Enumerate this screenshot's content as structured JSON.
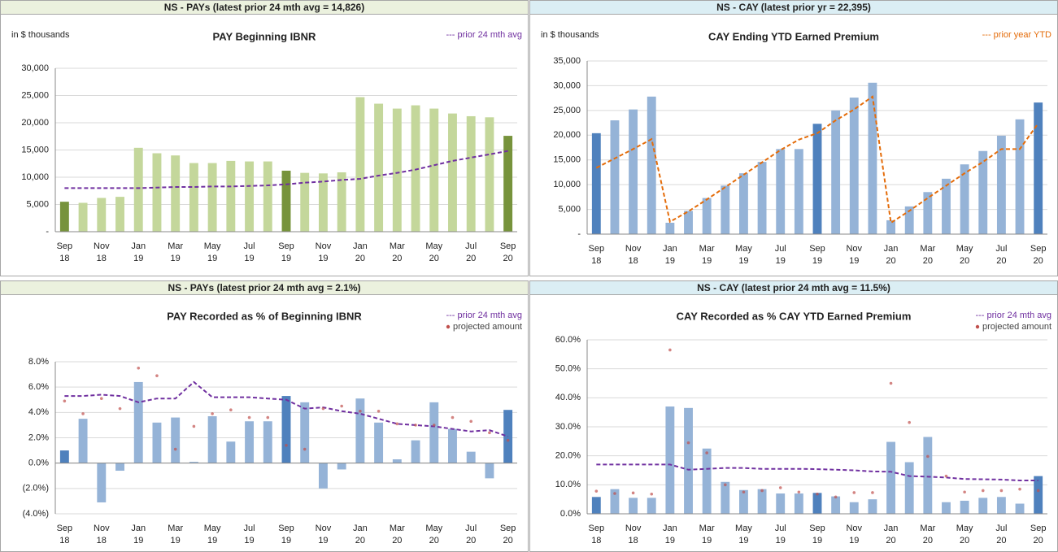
{
  "chart_data": [
    {
      "type": "bar",
      "header": "NS - PAYs (latest prior 24 mth avg = 14,826)",
      "header_color": "#ebf1de",
      "title": "PAY Beginning IBNR",
      "unit_label": "in $ thousands",
      "categories": [
        [
          "Sep",
          "18"
        ],
        null,
        [
          "Nov",
          "18"
        ],
        null,
        [
          "Jan",
          "19"
        ],
        null,
        [
          "Mar",
          "19"
        ],
        null,
        [
          "May",
          "19"
        ],
        null,
        [
          "Jul",
          "19"
        ],
        null,
        [
          "Sep",
          "19"
        ],
        null,
        [
          "Nov",
          "19"
        ],
        null,
        [
          "Jan",
          "20"
        ],
        null,
        [
          "Mar",
          "20"
        ],
        null,
        [
          "May",
          "20"
        ],
        null,
        [
          "Jul",
          "20"
        ],
        null,
        [
          "Sep",
          "20"
        ]
      ],
      "ylim": [
        0,
        30000
      ],
      "yticks": [
        {
          "value": 0,
          "label": "-"
        },
        {
          "value": 5000,
          "label": "5,000"
        },
        {
          "value": 10000,
          "label": "10,000"
        },
        {
          "value": 15000,
          "label": "15,000"
        },
        {
          "value": 20000,
          "label": "20,000"
        },
        {
          "value": 25000,
          "label": "25,000"
        },
        {
          "value": 30000,
          "label": "30,000"
        }
      ],
      "series": [
        {
          "type": "bar",
          "values": [
            5500,
            5300,
            6200,
            6400,
            15400,
            14400,
            14000,
            12600,
            12600,
            13000,
            12900,
            12900,
            11200,
            10800,
            10700,
            10900,
            24700,
            23500,
            22600,
            23200,
            22600,
            21700,
            21200,
            21000,
            17600
          ],
          "colors": [
            "#77933c",
            "#c4d79b",
            "#c4d79b",
            "#c4d79b",
            "#c4d79b",
            "#c4d79b",
            "#c4d79b",
            "#c4d79b",
            "#c4d79b",
            "#c4d79b",
            "#c4d79b",
            "#c4d79b",
            "#77933c",
            "#c4d79b",
            "#c4d79b",
            "#c4d79b",
            "#c4d79b",
            "#c4d79b",
            "#c4d79b",
            "#c4d79b",
            "#c4d79b",
            "#c4d79b",
            "#c4d79b",
            "#c4d79b",
            "#77933c"
          ]
        },
        {
          "type": "line",
          "name": "--- prior 24 mth avg",
          "color": "#7030a0",
          "values": [
            8000,
            8000,
            8000,
            8000,
            8000,
            8100,
            8200,
            8200,
            8300,
            8300,
            8400,
            8500,
            8700,
            9000,
            9200,
            9500,
            9700,
            10300,
            10800,
            11400,
            12200,
            13000,
            13600,
            14200,
            14826
          ]
        }
      ]
    },
    {
      "type": "bar",
      "header": "NS - CAY (latest prior yr = 22,395)",
      "header_color": "#dbeef4",
      "title": "CAY Ending YTD Earned Premium",
      "unit_label": "in $ thousands",
      "categories": [
        [
          "Sep",
          "18"
        ],
        null,
        [
          "Nov",
          "18"
        ],
        null,
        [
          "Jan",
          "19"
        ],
        null,
        [
          "Mar",
          "19"
        ],
        null,
        [
          "May",
          "19"
        ],
        null,
        [
          "Jul",
          "19"
        ],
        null,
        [
          "Sep",
          "19"
        ],
        null,
        [
          "Nov",
          "19"
        ],
        null,
        [
          "Jan",
          "20"
        ],
        null,
        [
          "Mar",
          "20"
        ],
        null,
        [
          "May",
          "20"
        ],
        null,
        [
          "Jul",
          "20"
        ],
        null,
        [
          "Sep",
          "20"
        ]
      ],
      "ylim": [
        0,
        35000
      ],
      "yticks": [
        {
          "value": 0,
          "label": "-"
        },
        {
          "value": 5000,
          "label": "5,000"
        },
        {
          "value": 10000,
          "label": "10,000"
        },
        {
          "value": 15000,
          "label": "15,000"
        },
        {
          "value": 20000,
          "label": "20,000"
        },
        {
          "value": 25000,
          "label": "25,000"
        },
        {
          "value": 30000,
          "label": "30,000"
        },
        {
          "value": 35000,
          "label": "35,000"
        }
      ],
      "series": [
        {
          "type": "bar",
          "values": [
            20400,
            23000,
            25200,
            27800,
            2300,
            4700,
            7300,
            9800,
            12300,
            14600,
            17200,
            17200,
            22300,
            25000,
            27600,
            30600,
            2800,
            5600,
            8500,
            11200,
            14100,
            16800,
            19900,
            23200,
            26600
          ],
          "colors": [
            "#4f81bd",
            "#95b3d7",
            "#95b3d7",
            "#95b3d7",
            "#95b3d7",
            "#95b3d7",
            "#95b3d7",
            "#95b3d7",
            "#95b3d7",
            "#95b3d7",
            "#95b3d7",
            "#95b3d7",
            "#4f81bd",
            "#95b3d7",
            "#95b3d7",
            "#95b3d7",
            "#95b3d7",
            "#95b3d7",
            "#95b3d7",
            "#95b3d7",
            "#95b3d7",
            "#95b3d7",
            "#95b3d7",
            "#95b3d7",
            "#4f81bd"
          ]
        },
        {
          "type": "line",
          "name": "--- prior year YTD",
          "color": "#e46c0a",
          "values": [
            13400,
            15300,
            17200,
            19200,
            2500,
            4600,
            7000,
            9500,
            12000,
            14500,
            17000,
            19100,
            20400,
            23000,
            25200,
            27800,
            2300,
            4700,
            7300,
            9800,
            12300,
            14600,
            17200,
            17200,
            22395
          ]
        }
      ]
    },
    {
      "type": "bar",
      "header": "NS - PAYs (latest prior 24 mth avg = 2.1%)",
      "header_color": "#ebf1de",
      "title": "PAY Recorded as % of Beginning IBNR",
      "categories": [
        [
          "Sep",
          "18"
        ],
        null,
        [
          "Nov",
          "18"
        ],
        null,
        [
          "Jan",
          "19"
        ],
        null,
        [
          "Mar",
          "19"
        ],
        null,
        [
          "May",
          "19"
        ],
        null,
        [
          "Jul",
          "19"
        ],
        null,
        [
          "Sep",
          "19"
        ],
        null,
        [
          "Nov",
          "19"
        ],
        null,
        [
          "Jan",
          "20"
        ],
        null,
        [
          "Mar",
          "20"
        ],
        null,
        [
          "May",
          "20"
        ],
        null,
        [
          "Jul",
          "20"
        ],
        null,
        [
          "Sep",
          "20"
        ]
      ],
      "ylim": [
        -4,
        8
      ],
      "yticks": [
        {
          "value": -4,
          "label": "(4.0%)"
        },
        {
          "value": -2,
          "label": "(2.0%)"
        },
        {
          "value": 0,
          "label": "0.0%"
        },
        {
          "value": 2,
          "label": "2.0%"
        },
        {
          "value": 4,
          "label": "4.0%"
        },
        {
          "value": 6,
          "label": "6.0%"
        },
        {
          "value": 8,
          "label": "8.0%"
        }
      ],
      "series": [
        {
          "type": "bar",
          "values": [
            1.0,
            3.5,
            -3.1,
            -0.6,
            6.4,
            3.2,
            3.6,
            0.1,
            3.7,
            1.7,
            3.3,
            3.3,
            5.3,
            4.8,
            -2.0,
            -0.5,
            5.1,
            3.2,
            0.3,
            1.8,
            4.8,
            2.7,
            0.9,
            -1.2,
            4.2
          ],
          "colors": [
            "#4f81bd",
            "#95b3d7",
            "#95b3d7",
            "#95b3d7",
            "#95b3d7",
            "#95b3d7",
            "#95b3d7",
            "#95b3d7",
            "#95b3d7",
            "#95b3d7",
            "#95b3d7",
            "#95b3d7",
            "#4f81bd",
            "#95b3d7",
            "#95b3d7",
            "#95b3d7",
            "#95b3d7",
            "#95b3d7",
            "#95b3d7",
            "#95b3d7",
            "#95b3d7",
            "#95b3d7",
            "#95b3d7",
            "#95b3d7",
            "#4f81bd"
          ]
        },
        {
          "type": "line",
          "name": "--- prior 24 mth avg",
          "color": "#7030a0",
          "values": [
            5.3,
            5.3,
            5.4,
            5.3,
            4.8,
            5.1,
            5.1,
            6.4,
            5.2,
            5.2,
            5.2,
            5.1,
            5.0,
            4.3,
            4.4,
            4.1,
            3.9,
            3.5,
            3.1,
            3.0,
            2.9,
            2.7,
            2.5,
            2.6,
            2.1
          ]
        },
        {
          "type": "scatter",
          "name": "projected amount",
          "color": "#c0504d",
          "values": [
            4.9,
            3.9,
            5.1,
            4.3,
            7.5,
            6.9,
            1.1,
            2.9,
            3.9,
            4.2,
            3.6,
            3.6,
            1.4,
            1.1,
            4.3,
            4.5,
            4.1,
            4.1,
            3.1,
            3.0,
            3.0,
            3.6,
            3.3,
            2.4,
            1.8
          ]
        }
      ]
    },
    {
      "type": "bar",
      "header": "NS - CAY (latest prior 24 mth avg = 11.5%)",
      "header_color": "#dbeef4",
      "title": "CAY Recorded as % CAY YTD Earned Premium",
      "categories": [
        [
          "Sep",
          "18"
        ],
        null,
        [
          "Nov",
          "18"
        ],
        null,
        [
          "Jan",
          "19"
        ],
        null,
        [
          "Mar",
          "19"
        ],
        null,
        [
          "May",
          "19"
        ],
        null,
        [
          "Jul",
          "19"
        ],
        null,
        [
          "Sep",
          "19"
        ],
        null,
        [
          "Nov",
          "19"
        ],
        null,
        [
          "Jan",
          "20"
        ],
        null,
        [
          "Mar",
          "20"
        ],
        null,
        [
          "May",
          "20"
        ],
        null,
        [
          "Jul",
          "20"
        ],
        null,
        [
          "Sep",
          "20"
        ]
      ],
      "ylim": [
        0,
        60
      ],
      "yticks": [
        {
          "value": 0,
          "label": "0.0%"
        },
        {
          "value": 10,
          "label": "10.0%"
        },
        {
          "value": 20,
          "label": "20.0%"
        },
        {
          "value": 30,
          "label": "30.0%"
        },
        {
          "value": 40,
          "label": "40.0%"
        },
        {
          "value": 50,
          "label": "50.0%"
        },
        {
          "value": 60,
          "label": "60.0%"
        }
      ],
      "series": [
        {
          "type": "bar",
          "values": [
            5.8,
            8.5,
            5.5,
            5.5,
            37.0,
            36.5,
            22.5,
            11.0,
            8.2,
            8.5,
            7.0,
            7.0,
            7.2,
            6.0,
            4.0,
            5.0,
            24.8,
            17.8,
            26.5,
            4.0,
            4.5,
            5.5,
            5.8,
            3.5,
            13.0
          ],
          "colors": [
            "#4f81bd",
            "#95b3d7",
            "#95b3d7",
            "#95b3d7",
            "#95b3d7",
            "#95b3d7",
            "#95b3d7",
            "#95b3d7",
            "#95b3d7",
            "#95b3d7",
            "#95b3d7",
            "#95b3d7",
            "#4f81bd",
            "#95b3d7",
            "#95b3d7",
            "#95b3d7",
            "#95b3d7",
            "#95b3d7",
            "#95b3d7",
            "#95b3d7",
            "#95b3d7",
            "#95b3d7",
            "#95b3d7",
            "#95b3d7",
            "#4f81bd"
          ]
        },
        {
          "type": "line",
          "name": "--- prior 24 mth avg",
          "color": "#7030a0",
          "values": [
            17.0,
            17.0,
            17.0,
            17.0,
            17.0,
            15.2,
            15.5,
            15.8,
            15.8,
            15.5,
            15.5,
            15.5,
            15.4,
            15.2,
            15.0,
            14.6,
            14.5,
            13.0,
            12.8,
            12.5,
            12.0,
            11.9,
            11.8,
            11.5,
            11.5
          ]
        },
        {
          "type": "scatter",
          "name": "projected amount",
          "color": "#c0504d",
          "values": [
            7.8,
            7.0,
            7.2,
            6.8,
            56.5,
            24.5,
            21.0,
            10.0,
            7.5,
            8.0,
            9.0,
            7.5,
            6.8,
            5.8,
            7.3,
            7.3,
            45.0,
            31.5,
            19.8,
            13.0,
            7.5,
            8.0,
            8.0,
            8.5,
            8.0
          ]
        }
      ]
    }
  ]
}
